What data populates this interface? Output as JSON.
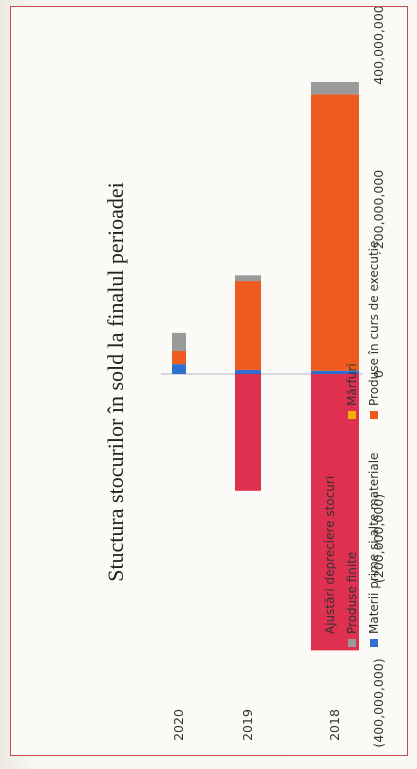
{
  "chart_data": {
    "type": "bar",
    "orientation": "horizontal",
    "stacked": true,
    "title": "Stuctura stocurilor în sold la finalul perioadei",
    "categories": [
      "2020",
      "2019",
      "2018"
    ],
    "xlim": [
      -400000000,
      400000000
    ],
    "x_ticks": [
      -400000000,
      -200000000,
      0,
      200000000,
      400000000
    ],
    "x_tick_labels": [
      "(400,000,000)",
      "(200,000,000)",
      "0",
      "200,000,000",
      "400,000,000"
    ],
    "grid": false,
    "legend_position": "bottom",
    "series": [
      {
        "name": "Materii prime și alte materiale",
        "color": "#2e6fcf",
        "values": [
          12000000,
          5000000,
          4000000
        ]
      },
      {
        "name": "Produse în curs de execuție",
        "color": "#ef5a1e",
        "values": [
          16000000,
          108000000,
          336000000
        ]
      },
      {
        "name": "Produse finite",
        "color": "#9a9a9a",
        "values": [
          22000000,
          7000000,
          15000000
        ]
      },
      {
        "name": "Mărfuri",
        "color": "#f5b000",
        "values": [
          0,
          0,
          0
        ]
      },
      {
        "name": "Ajustări depreciere stocuri",
        "color": "#e03050",
        "values": [
          0,
          -142000000,
          -336000000
        ]
      }
    ]
  }
}
